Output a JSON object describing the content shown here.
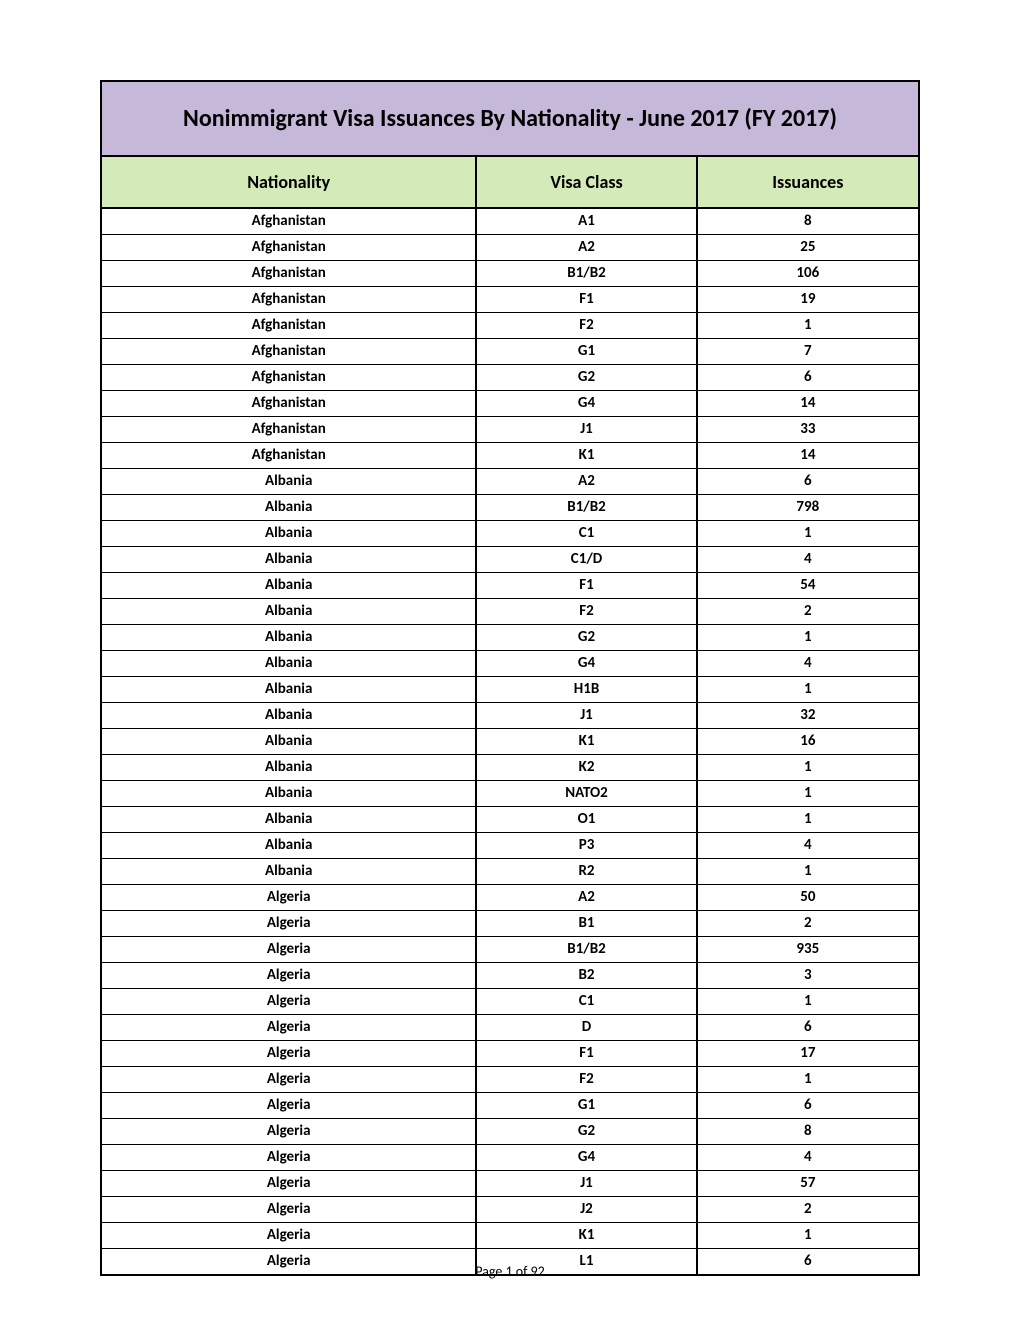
{
  "title": "Nonimmigrant Visa Issuances By Nationality - June 2017 (FY 2017)",
  "columns": {
    "nationality": "Nationality",
    "visa_class": "Visa Class",
    "issuances": "Issuances"
  },
  "colors": {
    "title_bg": "#c5b8d8",
    "header_bg": "#d4eab8",
    "border": "#000000",
    "page_bg": "#ffffff"
  },
  "layout": {
    "col_widths_pct": [
      46,
      27,
      27
    ],
    "title_fontsize": 24,
    "header_fontsize": 18,
    "cell_fontsize": 15
  },
  "rows": [
    {
      "nationality": "Afghanistan",
      "visa_class": "A1",
      "issuances": "8"
    },
    {
      "nationality": "Afghanistan",
      "visa_class": "A2",
      "issuances": "25"
    },
    {
      "nationality": "Afghanistan",
      "visa_class": "B1/B2",
      "issuances": "106"
    },
    {
      "nationality": "Afghanistan",
      "visa_class": "F1",
      "issuances": "19"
    },
    {
      "nationality": "Afghanistan",
      "visa_class": "F2",
      "issuances": "1"
    },
    {
      "nationality": "Afghanistan",
      "visa_class": "G1",
      "issuances": "7"
    },
    {
      "nationality": "Afghanistan",
      "visa_class": "G2",
      "issuances": "6"
    },
    {
      "nationality": "Afghanistan",
      "visa_class": "G4",
      "issuances": "14"
    },
    {
      "nationality": "Afghanistan",
      "visa_class": "J1",
      "issuances": "33"
    },
    {
      "nationality": "Afghanistan",
      "visa_class": "K1",
      "issuances": "14"
    },
    {
      "nationality": "Albania",
      "visa_class": "A2",
      "issuances": "6"
    },
    {
      "nationality": "Albania",
      "visa_class": "B1/B2",
      "issuances": "798"
    },
    {
      "nationality": "Albania",
      "visa_class": "C1",
      "issuances": "1"
    },
    {
      "nationality": "Albania",
      "visa_class": "C1/D",
      "issuances": "4"
    },
    {
      "nationality": "Albania",
      "visa_class": "F1",
      "issuances": "54"
    },
    {
      "nationality": "Albania",
      "visa_class": "F2",
      "issuances": "2"
    },
    {
      "nationality": "Albania",
      "visa_class": "G2",
      "issuances": "1"
    },
    {
      "nationality": "Albania",
      "visa_class": "G4",
      "issuances": "4"
    },
    {
      "nationality": "Albania",
      "visa_class": "H1B",
      "issuances": "1"
    },
    {
      "nationality": "Albania",
      "visa_class": "J1",
      "issuances": "32"
    },
    {
      "nationality": "Albania",
      "visa_class": "K1",
      "issuances": "16"
    },
    {
      "nationality": "Albania",
      "visa_class": "K2",
      "issuances": "1"
    },
    {
      "nationality": "Albania",
      "visa_class": "NATO2",
      "issuances": "1"
    },
    {
      "nationality": "Albania",
      "visa_class": "O1",
      "issuances": "1"
    },
    {
      "nationality": "Albania",
      "visa_class": "P3",
      "issuances": "4"
    },
    {
      "nationality": "Albania",
      "visa_class": "R2",
      "issuances": "1"
    },
    {
      "nationality": "Algeria",
      "visa_class": "A2",
      "issuances": "50"
    },
    {
      "nationality": "Algeria",
      "visa_class": "B1",
      "issuances": "2"
    },
    {
      "nationality": "Algeria",
      "visa_class": "B1/B2",
      "issuances": "935"
    },
    {
      "nationality": "Algeria",
      "visa_class": "B2",
      "issuances": "3"
    },
    {
      "nationality": "Algeria",
      "visa_class": "C1",
      "issuances": "1"
    },
    {
      "nationality": "Algeria",
      "visa_class": "D",
      "issuances": "6"
    },
    {
      "nationality": "Algeria",
      "visa_class": "F1",
      "issuances": "17"
    },
    {
      "nationality": "Algeria",
      "visa_class": "F2",
      "issuances": "1"
    },
    {
      "nationality": "Algeria",
      "visa_class": "G1",
      "issuances": "6"
    },
    {
      "nationality": "Algeria",
      "visa_class": "G2",
      "issuances": "8"
    },
    {
      "nationality": "Algeria",
      "visa_class": "G4",
      "issuances": "4"
    },
    {
      "nationality": "Algeria",
      "visa_class": "J1",
      "issuances": "57"
    },
    {
      "nationality": "Algeria",
      "visa_class": "J2",
      "issuances": "2"
    },
    {
      "nationality": "Algeria",
      "visa_class": "K1",
      "issuances": "1"
    },
    {
      "nationality": "Algeria",
      "visa_class": "L1",
      "issuances": "6"
    }
  ],
  "footer": "Page 1 of 92"
}
